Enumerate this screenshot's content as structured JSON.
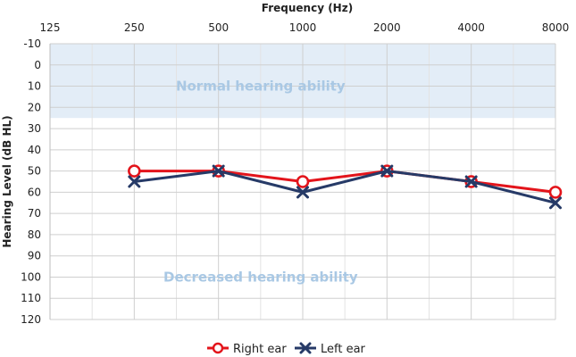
{
  "chart_data": {
    "type": "line",
    "xlabel": "Frequency (Hz)",
    "ylabel": "Hearing Level (dB HL)",
    "x": [
      "125",
      "250",
      "500",
      "1000",
      "2000",
      "4000",
      "8000"
    ],
    "y_ticks": [
      "-10",
      "0",
      "10",
      "20",
      "30",
      "40",
      "50",
      "60",
      "70",
      "80",
      "90",
      "100",
      "110",
      "120"
    ],
    "ylim": [
      -10,
      120
    ],
    "y_inverted": true,
    "grid": true,
    "legend_position": "bottom",
    "shaded_band": {
      "from": -10,
      "to": 25,
      "color": "#e3edf7"
    },
    "annotations": [
      {
        "text": "Normal hearing ability",
        "x": 2.5,
        "y": 10
      },
      {
        "text": "Decreased hearing ability",
        "x": 2.5,
        "y": 100
      }
    ],
    "series": [
      {
        "name": "Right ear",
        "color": "#e3141b",
        "marker": "circle",
        "x": [
          "250",
          "500",
          "1000",
          "2000",
          "4000",
          "8000"
        ],
        "values": [
          50,
          50,
          55,
          50,
          55,
          60
        ]
      },
      {
        "name": "Left ear",
        "color": "#263a67",
        "marker": "cross",
        "x": [
          "250",
          "500",
          "1000",
          "2000",
          "4000",
          "8000"
        ],
        "values": [
          55,
          50,
          60,
          50,
          55,
          65
        ]
      }
    ]
  }
}
